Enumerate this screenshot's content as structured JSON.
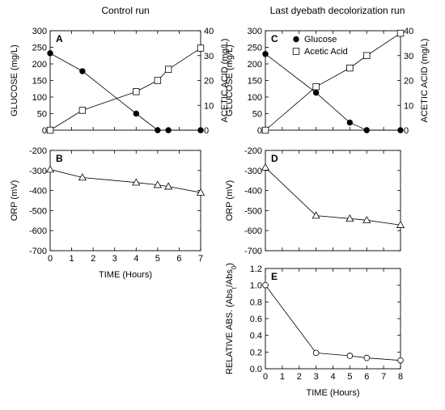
{
  "columns": {
    "left_title": "Control run",
    "right_title": "Last dyebath decolorization run"
  },
  "chart_data": [
    {
      "id": "A",
      "panel_label": "A",
      "type": "line",
      "ylabel": "GLUCOSE (mg/L)",
      "y2label": "ACETIC ACID (mg/L)",
      "xlim": [
        0,
        7
      ],
      "ylim": [
        0,
        300
      ],
      "y2lim": [
        0,
        40
      ],
      "yticks": [
        "0",
        "50",
        "100",
        "150",
        "200",
        "250",
        "300"
      ],
      "y2ticks": [
        "0",
        "10",
        "20",
        "30",
        "40"
      ],
      "series": [
        {
          "marker": "filled-circle",
          "axis": "left",
          "x": [
            0,
            1.5,
            4,
            5,
            5.5,
            7
          ],
          "y": [
            232,
            178,
            50,
            0,
            0,
            0
          ]
        },
        {
          "marker": "open-square",
          "axis": "right",
          "x": [
            0,
            1.5,
            4,
            5,
            5.5,
            7
          ],
          "y": [
            0,
            8,
            15.5,
            20,
            24.5,
            33
          ]
        }
      ]
    },
    {
      "id": "C",
      "panel_label": "C",
      "type": "line",
      "ylabel": "GLUCOSE (mg/L)",
      "y2label": "ACETIC ACID (mg/L)",
      "xlim": [
        0,
        8
      ],
      "ylim": [
        0,
        300
      ],
      "y2lim": [
        0,
        40
      ],
      "yticks": [
        "0",
        "50",
        "100",
        "150",
        "200",
        "250",
        "300"
      ],
      "y2ticks": [
        "0",
        "10",
        "20",
        "30",
        "40"
      ],
      "legend": {
        "position": "top-center",
        "entries": [
          "Glucose",
          "Acetic Acid"
        ]
      },
      "series": [
        {
          "name": "Glucose",
          "marker": "filled-circle",
          "axis": "left",
          "x": [
            0,
            3,
            5,
            6,
            8
          ],
          "y": [
            230,
            113,
            23,
            0,
            0
          ]
        },
        {
          "name": "Acetic Acid",
          "marker": "open-square",
          "axis": "right",
          "x": [
            0,
            3,
            5,
            6,
            8
          ],
          "y": [
            0,
            17.5,
            25,
            30,
            39
          ]
        }
      ]
    },
    {
      "id": "B",
      "panel_label": "B",
      "type": "line",
      "ylabel": "ORP (mV)",
      "xlabel": "TIME (Hours)",
      "xlim": [
        0,
        7
      ],
      "ylim": [
        -700,
        -200
      ],
      "xticks": [
        "0",
        "1",
        "2",
        "3",
        "4",
        "5",
        "6",
        "7"
      ],
      "yticks": [
        "-700",
        "-600",
        "-500",
        "-400",
        "-300",
        "-200"
      ],
      "series": [
        {
          "marker": "open-triangle",
          "x": [
            0,
            1.5,
            4,
            5,
            5.5,
            7
          ],
          "y": [
            -295,
            -335,
            -360,
            -372,
            -380,
            -410
          ]
        }
      ]
    },
    {
      "id": "D",
      "panel_label": "D",
      "type": "line",
      "ylabel": "ORP (mV)",
      "xlim": [
        0,
        8
      ],
      "ylim": [
        -700,
        -200
      ],
      "yticks": [
        "-700",
        "-600",
        "-500",
        "-400",
        "-300",
        "-200"
      ],
      "series": [
        {
          "marker": "open-triangle",
          "x": [
            0,
            3,
            5,
            6,
            8
          ],
          "y": [
            -285,
            -525,
            -540,
            -548,
            -572
          ]
        }
      ]
    },
    {
      "id": "E",
      "panel_label": "E",
      "type": "line",
      "ylabel": "RELATIVE ABS. (Abs",
      "ylabel_sub1": "t",
      "ylabel_mid": "/Abs",
      "ylabel_sub2": "0",
      "ylabel_end": ")",
      "xlabel": "TIME (Hours)",
      "xlim": [
        0,
        8
      ],
      "ylim": [
        0,
        1.2
      ],
      "xticks": [
        "0",
        "1",
        "2",
        "3",
        "4",
        "5",
        "6",
        "7",
        "8"
      ],
      "yticks": [
        "0.0",
        "0.2",
        "0.4",
        "0.6",
        "0.8",
        "1.0",
        "1.2"
      ],
      "series": [
        {
          "marker": "open-circle",
          "x": [
            0,
            3,
            5,
            6,
            8
          ],
          "y": [
            1.0,
            0.19,
            0.155,
            0.13,
            0.1
          ]
        }
      ]
    }
  ]
}
